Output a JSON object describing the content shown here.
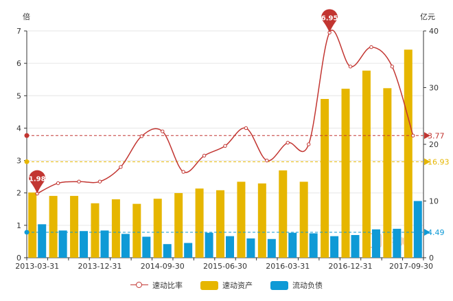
{
  "chart_data": {
    "type": "bar",
    "categories": [
      "2013-03-31",
      "2013-06-30",
      "2013-09-30",
      "2013-12-31",
      "2014-03-31",
      "2014-06-30",
      "2014-09-30",
      "2014-12-31",
      "2015-03-31",
      "2015-06-30",
      "2015-09-30",
      "2015-12-31",
      "2016-03-31",
      "2016-06-30",
      "2016-09-30",
      "2016-12-31",
      "2017-03-31",
      "2017-06-30",
      "2017-09-30"
    ],
    "x_tick_labels": [
      "2013-03-31",
      "2013-12-31",
      "2014-09-30",
      "2015-06-30",
      "2016-03-31",
      "2016-12-31",
      "2017-09-30"
    ],
    "left_axis": {
      "unit": "倍",
      "range": [
        0,
        7
      ],
      "ticks": [
        0,
        1,
        2,
        3,
        4,
        5,
        6,
        7
      ]
    },
    "right_axis": {
      "unit": "亿元",
      "range": [
        0,
        40
      ],
      "ticks": [
        0,
        10,
        20,
        30,
        40
      ]
    },
    "series": [
      {
        "name": "速动比率",
        "type": "line",
        "axis": "left",
        "color": "#c23531",
        "values": [
          1.98,
          2.3,
          2.35,
          2.35,
          2.8,
          3.75,
          3.9,
          2.65,
          3.15,
          3.45,
          4.0,
          3.0,
          3.55,
          3.5,
          6.95,
          5.9,
          6.5,
          5.9,
          3.77
        ]
      },
      {
        "name": "速动资产",
        "type": "bar",
        "axis": "right",
        "color": "#e6b600",
        "values": [
          11.5,
          10.9,
          10.9,
          9.6,
          10.3,
          9.5,
          10.4,
          11.4,
          12.2,
          11.9,
          13.4,
          13.1,
          15.4,
          13.4,
          28.0,
          29.8,
          33.0,
          29.9,
          36.7
        ]
      },
      {
        "name": "流动负债",
        "type": "bar",
        "axis": "right",
        "color": "#0f9ad6",
        "values": [
          5.9,
          4.8,
          4.7,
          4.8,
          4.2,
          3.7,
          2.4,
          2.6,
          4.4,
          3.8,
          3.4,
          3.3,
          4.4,
          4.3,
          3.8,
          4.0,
          5.0,
          5.1,
          10.0
        ]
      }
    ],
    "mark_points": [
      {
        "series": "速动比率",
        "label": "1.98",
        "index": 0,
        "value": 1.98
      },
      {
        "series": "速动比率",
        "label": "6.95",
        "index": 14,
        "value": 6.95
      }
    ],
    "mark_lines": [
      {
        "series": "速动比率",
        "axis": "left",
        "value": 3.77,
        "label": "3.77",
        "color": "#c23531"
      },
      {
        "series": "速动资产",
        "axis": "right",
        "value": 16.93,
        "label": "16.93",
        "color": "#e6b600"
      },
      {
        "series": "流动负债",
        "axis": "right",
        "value": 4.49,
        "label": "4.49",
        "color": "#0f9ad6"
      }
    ],
    "watermark": "同花顺",
    "legend_position": "bottom-center",
    "grid": true
  }
}
